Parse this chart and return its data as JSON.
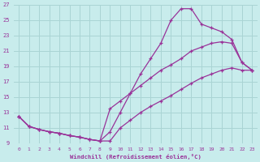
{
  "bg_color": "#c8ecec",
  "line_color": "#993399",
  "grid_color": "#aad4d4",
  "xlim": [
    -0.5,
    23.5
  ],
  "ylim": [
    9,
    27
  ],
  "xticks": [
    0,
    1,
    2,
    3,
    4,
    5,
    6,
    7,
    8,
    9,
    10,
    11,
    12,
    13,
    14,
    15,
    16,
    17,
    18,
    19,
    20,
    21,
    22,
    23
  ],
  "yticks": [
    9,
    11,
    13,
    15,
    17,
    19,
    21,
    23,
    25,
    27
  ],
  "xlabel": "Windchill (Refroidissement éolien,°C)",
  "line1_x": [
    0,
    1,
    2,
    3,
    4,
    5,
    6,
    7,
    8,
    9,
    10,
    11,
    12,
    13,
    14,
    15,
    16,
    17,
    18,
    19,
    20,
    21,
    22,
    23
  ],
  "line1_y": [
    12.5,
    11.2,
    10.8,
    10.5,
    10.3,
    10.0,
    9.8,
    9.5,
    9.3,
    10.5,
    13.0,
    15.5,
    18.0,
    20.0,
    22.0,
    25.0,
    26.5,
    26.5,
    24.5,
    24.0,
    23.5,
    22.5,
    19.5,
    18.5
  ],
  "line2_x": [
    0,
    1,
    2,
    3,
    4,
    5,
    6,
    7,
    8,
    9,
    10,
    11,
    12,
    13,
    14,
    15,
    16,
    17,
    18,
    19,
    20,
    21,
    22,
    23
  ],
  "line2_y": [
    12.5,
    11.2,
    10.8,
    10.5,
    10.3,
    10.0,
    9.8,
    9.5,
    9.3,
    13.5,
    14.5,
    15.5,
    16.5,
    17.5,
    18.5,
    19.2,
    20.0,
    21.0,
    21.5,
    22.0,
    22.2,
    22.0,
    19.5,
    18.5
  ],
  "line3_x": [
    0,
    1,
    2,
    3,
    4,
    5,
    6,
    7,
    8,
    9,
    10,
    11,
    12,
    13,
    14,
    15,
    16,
    17,
    18,
    19,
    20,
    21,
    22,
    23
  ],
  "line3_y": [
    12.5,
    11.2,
    10.8,
    10.5,
    10.3,
    10.0,
    9.8,
    9.5,
    9.3,
    9.3,
    11.0,
    12.0,
    13.0,
    13.8,
    14.5,
    15.2,
    16.0,
    16.8,
    17.5,
    18.0,
    18.5,
    18.8,
    18.5,
    18.5
  ]
}
